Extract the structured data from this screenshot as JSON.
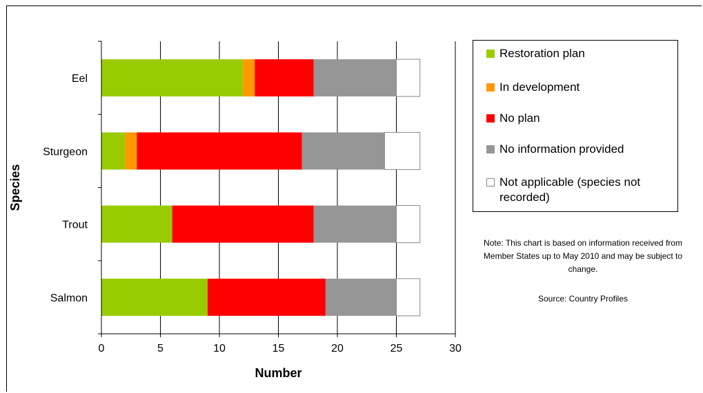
{
  "chart_data": {
    "type": "bar",
    "orientation": "horizontal",
    "stacked": true,
    "xlabel": "Number",
    "ylabel": "Species",
    "xlim": [
      0,
      30
    ],
    "xticks": [
      0,
      5,
      10,
      15,
      20,
      25,
      30
    ],
    "grid": true,
    "legend_position": "right",
    "categories": [
      "Eel",
      "Sturgeon",
      "Trout",
      "Salmon"
    ],
    "series": [
      {
        "name": "Restoration plan",
        "color": "#99cc00",
        "values": [
          12,
          2,
          6,
          9
        ]
      },
      {
        "name": "In development",
        "color": "#ff9900",
        "values": [
          1,
          1,
          0,
          0
        ]
      },
      {
        "name": "No plan",
        "color": "#ff0000",
        "values": [
          5,
          14,
          12,
          10
        ]
      },
      {
        "name": "No information provided",
        "color": "#969696",
        "values": [
          7,
          7,
          7,
          6
        ]
      },
      {
        "name": "Not applicable (species not recorded)",
        "color": "#ffffff",
        "values": [
          2,
          3,
          2,
          2
        ]
      }
    ]
  },
  "note": "Note: This chart is based on information received from Member States up to May 2010 and may be subject to change.",
  "source": "Source: Country Profiles"
}
